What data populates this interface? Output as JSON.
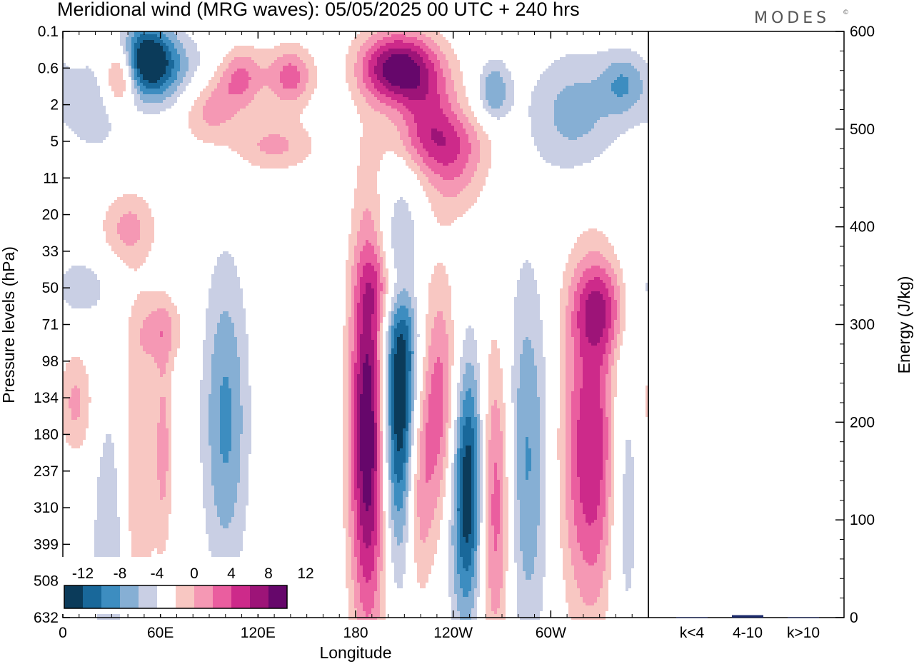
{
  "title": "Meridional wind (MRG waves):  05/05/2025  00 UTC  + 240 hrs",
  "brand": "MODES",
  "brand_mark": "©",
  "colors": {
    "neg": [
      "#0b3b5a",
      "#19689a",
      "#3d8dc0",
      "#86afd4",
      "#c9cfe4"
    ],
    "pos": [
      "#f8c7c2",
      "#f598b4",
      "#ea5e9f",
      "#cd2a8a",
      "#9d1478",
      "#66076b"
    ],
    "energy_bar": "#1c2a6b"
  },
  "chart_data": [
    {
      "type": "heatmap",
      "title": "Meridional wind (MRG waves):  05/05/2025  00 UTC  + 240 hrs",
      "xlabel": "Longitude",
      "ylabel": "Pressure levels (hPa)",
      "x_ticklabels": [
        "0",
        "60E",
        "120E",
        "180",
        "120W",
        "60W"
      ],
      "x_tick_values_deg": [
        0,
        60,
        120,
        180,
        240,
        300
      ],
      "xlim_deg": [
        0,
        360
      ],
      "y_ticklabels": [
        "0.1",
        "0.6",
        "2",
        "5",
        "11",
        "20",
        "33",
        "50",
        "71",
        "98",
        "134",
        "180",
        "237",
        "310",
        "399",
        "508",
        "632"
      ],
      "contour_levels": [
        "-12",
        "-8",
        "-4",
        "0",
        "4",
        "8",
        "12"
      ],
      "features": [
        {
          "lon": 52,
          "level": 0.4,
          "value": -13,
          "sx": 12,
          "sy": 0.7
        },
        {
          "lon": 77,
          "level": 1.0,
          "value": -5,
          "sx": 15,
          "sy": 0.8
        },
        {
          "lon": 35,
          "level": 0.8,
          "value": 9,
          "sx": 7,
          "sy": 0.6
        },
        {
          "lon": 88,
          "level": 2.0,
          "value": 7,
          "sx": 14,
          "sy": 0.7
        },
        {
          "lon": 110,
          "level": 0.8,
          "value": 6,
          "sx": 10,
          "sy": 0.6
        },
        {
          "lon": 140,
          "level": 0.8,
          "value": 7,
          "sx": 10,
          "sy": 0.6
        },
        {
          "lon": 205,
          "level": 0.6,
          "value": 13,
          "sx": 16,
          "sy": 0.7
        },
        {
          "lon": 225,
          "level": 2.0,
          "value": 6,
          "sx": 14,
          "sy": 1.0
        },
        {
          "lon": 265,
          "level": 1.3,
          "value": -6,
          "sx": 7,
          "sy": 0.6
        },
        {
          "lon": 232,
          "level": 5.0,
          "value": 4.5,
          "sx": 22,
          "sy": 0.6
        },
        {
          "lon": 315,
          "level": 2.5,
          "value": -5,
          "sx": 20,
          "sy": 1.2
        },
        {
          "lon": 345,
          "level": 1.0,
          "value": -5,
          "sx": 10,
          "sy": 0.6
        },
        {
          "lon": 240,
          "level": 10.0,
          "value": 4.5,
          "sx": 14,
          "sy": 0.9
        },
        {
          "lon": 130,
          "level": 5.5,
          "value": 4.5,
          "sx": 18,
          "sy": 0.5
        },
        {
          "lon": 20,
          "level": 2.0,
          "value": -3.5,
          "sx": 15,
          "sy": 1.0
        },
        {
          "lon": 40,
          "level": 24.0,
          "value": 4.5,
          "sx": 12,
          "sy": 0.7
        },
        {
          "lon": 202,
          "level": 49.0,
          "value": 4.5,
          "sx": 12,
          "sy": 0.7
        },
        {
          "lon": 330,
          "level": 60.0,
          "value": 7,
          "sx": 12,
          "sy": 0.9
        },
        {
          "lon": 60,
          "level": 75.0,
          "value": 4.5,
          "sx": 10,
          "sy": 0.7
        },
        {
          "lon": 10,
          "level": 50.0,
          "value": -3.5,
          "sx": 12,
          "sy": 0.6
        },
        {
          "lon": 325,
          "level": 200.0,
          "value": 10,
          "sx": 13,
          "sy": 3.2
        },
        {
          "lon": 188,
          "level": 175.0,
          "value": 15,
          "sx": 8,
          "sy": 3.8
        },
        {
          "lon": 208,
          "level": 135.0,
          "value": -14,
          "sx": 9,
          "sy": 3.0
        },
        {
          "lon": 218,
          "level": 260.0,
          "value": 7,
          "sx": 6,
          "sy": 2.2
        },
        {
          "lon": 232,
          "level": 145.0,
          "value": 8,
          "sx": 10,
          "sy": 2.4
        },
        {
          "lon": 249,
          "level": 260.0,
          "value": -14,
          "sx": 8,
          "sy": 2.6
        },
        {
          "lon": 265,
          "level": 290.0,
          "value": 9,
          "sx": 8,
          "sy": 3.0
        },
        {
          "lon": 285,
          "level": 220.0,
          "value": -6.5,
          "sx": 10,
          "sy": 3.6
        },
        {
          "lon": 100,
          "level": 160.0,
          "value": -6.5,
          "sx": 10,
          "sy": 3.0
        },
        {
          "lon": 30,
          "level": 420.0,
          "value": -4.5,
          "sx": 8,
          "sy": 3.2
        },
        {
          "lon": 45,
          "level": 250.0,
          "value": 4.5,
          "sx": 8,
          "sy": 3.2
        },
        {
          "lon": 345,
          "level": 260.0,
          "value": -5,
          "sx": 7,
          "sy": 3.2
        },
        {
          "lon": 8,
          "level": 140.0,
          "value": 4.5,
          "sx": 8,
          "sy": 1.0
        },
        {
          "lon": 62,
          "level": 200.0,
          "value": 4.5,
          "sx": 4,
          "sy": 2.0
        }
      ]
    },
    {
      "type": "bar",
      "ylabel": "Energy (J/kg)",
      "categories": [
        "k<4",
        "4-10",
        "k>10"
      ],
      "values": [
        0.3,
        2.5,
        0.3
      ],
      "ylim": [
        0,
        600
      ],
      "y_ticklabels": [
        "0",
        "100",
        "200",
        "300",
        "400",
        "500",
        "600"
      ]
    }
  ]
}
